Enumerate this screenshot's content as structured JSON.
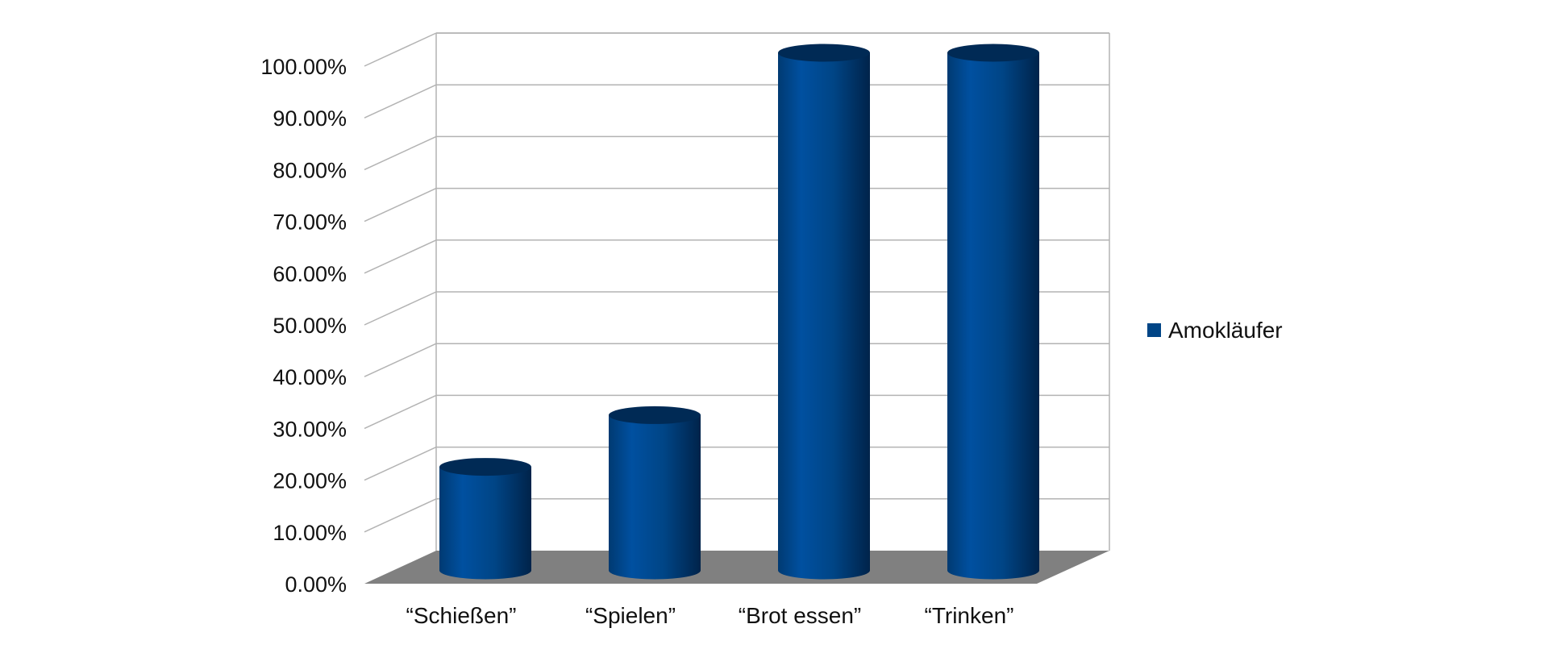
{
  "chart_data": {
    "type": "bar",
    "style": "3d-cylinder",
    "categories": [
      "“Schießen”",
      "“Spielen”",
      "“Brot essen”",
      "“Trinken”"
    ],
    "series": [
      {
        "name": "Amokläufer",
        "values": [
          0.2,
          0.3,
          1.0,
          1.0
        ],
        "color": "#004586"
      }
    ],
    "yticks": [
      "0.00%",
      "10.00%",
      "20.00%",
      "30.00%",
      "40.00%",
      "50.00%",
      "60.00%",
      "70.00%",
      "80.00%",
      "90.00%",
      "100.00%"
    ],
    "ylim": [
      0,
      1
    ],
    "grid": true,
    "legend_position": "right",
    "title": "",
    "xlabel": "",
    "ylabel": "",
    "colors": {
      "floor": "#808080",
      "grid": "#b3b3b3",
      "bar": "#004586",
      "bar_top": "#002a55"
    }
  }
}
